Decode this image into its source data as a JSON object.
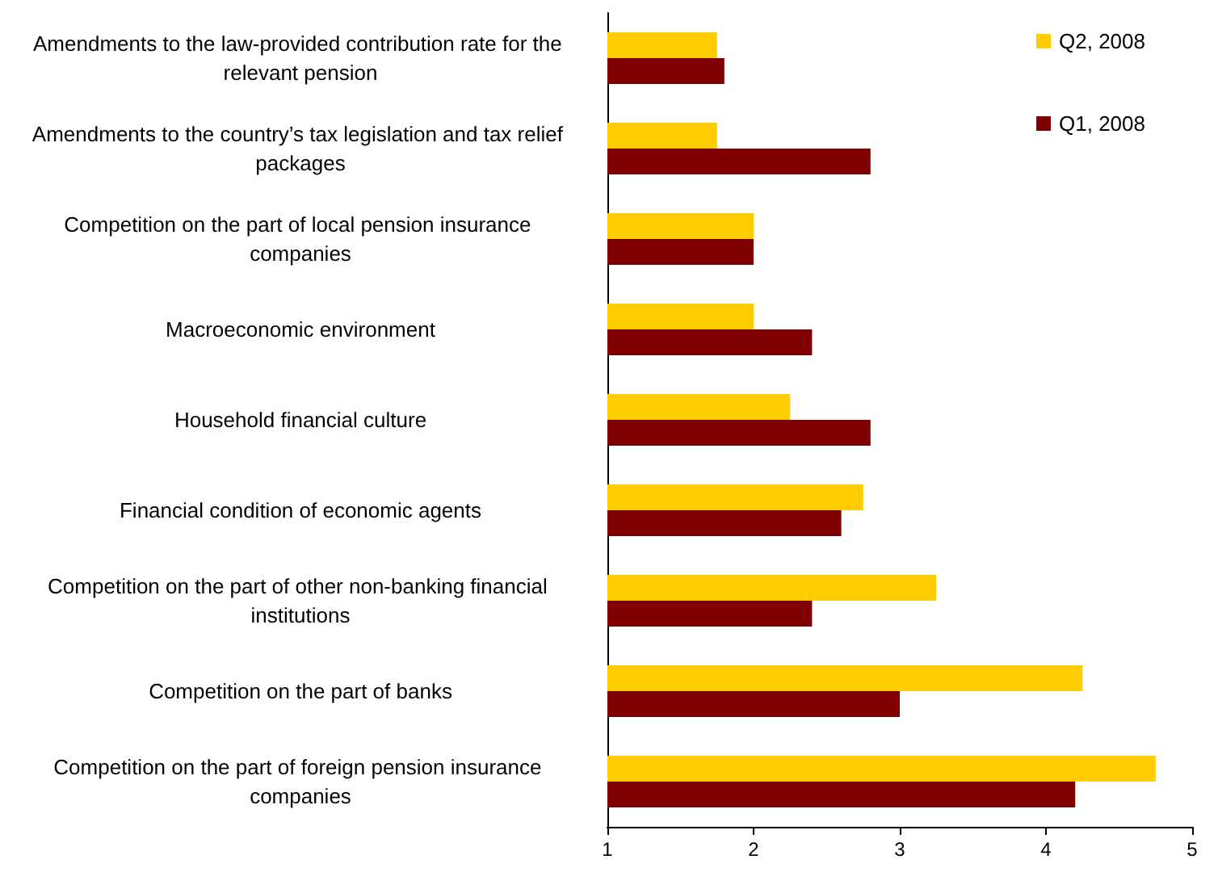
{
  "chart_data": {
    "type": "bar",
    "orientation": "horizontal",
    "categories": [
      "Amendments to the law-provided contribution rate for the relevant pension",
      "Amendments to the country’s tax legislation and tax relief packages",
      "Competition on the part of local pension insurance companies",
      "Macroeconomic environment",
      "Household financial culture",
      "Financial condition of economic agents",
      "Competition on the part of other non-banking financial institutions",
      "Competition on the part of banks",
      "Competition on the part of foreign pension insurance companies"
    ],
    "series": [
      {
        "name": "Q2, 2008",
        "color": "#ffcc00",
        "values": [
          1.75,
          1.75,
          2.0,
          2.0,
          2.25,
          2.75,
          3.25,
          4.25,
          4.75
        ]
      },
      {
        "name": "Q1, 2008",
        "color": "#800000",
        "values": [
          1.8,
          2.8,
          2.0,
          2.4,
          2.8,
          2.6,
          2.4,
          3.0,
          4.2
        ]
      }
    ],
    "xlim": [
      1,
      5
    ],
    "xticks": [
      1,
      2,
      3,
      4,
      5
    ],
    "grid": false,
    "legend": "top right"
  }
}
